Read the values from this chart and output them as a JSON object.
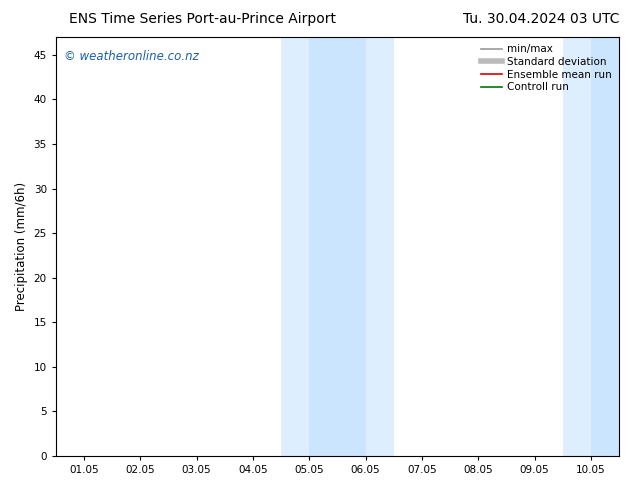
{
  "title_left": "ENS Time Series Port-au-Prince Airport",
  "title_right": "Tu. 30.04.2024 03 UTC",
  "xlabel": "",
  "ylabel": "Precipitation (mm/6h)",
  "ylim": [
    0,
    47
  ],
  "yticks": [
    0,
    5,
    10,
    15,
    20,
    25,
    30,
    35,
    40,
    45
  ],
  "xtick_labels": [
    "01.05",
    "02.05",
    "03.05",
    "04.05",
    "05.05",
    "06.05",
    "07.05",
    "08.05",
    "09.05",
    "10.05"
  ],
  "xtick_positions": [
    0,
    1,
    2,
    3,
    4,
    5,
    6,
    7,
    8,
    9
  ],
  "shaded_regions": [
    {
      "xmin": 3.3,
      "xmax": 4.0,
      "color": "#ddeeff"
    },
    {
      "xmin": 4.0,
      "xmax": 5.0,
      "color": "#cce5ff"
    },
    {
      "xmin": 5.0,
      "xmax": 5.7,
      "color": "#ddeeff"
    },
    {
      "xmin": 8.3,
      "xmax": 9.0,
      "color": "#ddeeff"
    },
    {
      "xmin": 9.0,
      "xmax": 9.7,
      "color": "#cce5ff"
    }
  ],
  "background_color": "#ffffff",
  "watermark_text": "© weatheronline.co.nz",
  "watermark_color": "#1a5faa",
  "legend_entries": [
    {
      "label": "min/max",
      "color": "#999999",
      "lw": 1.2,
      "style": "solid"
    },
    {
      "label": "Standard deviation",
      "color": "#bbbbbb",
      "lw": 4,
      "style": "solid"
    },
    {
      "label": "Ensemble mean run",
      "color": "#dd0000",
      "lw": 1.2,
      "style": "solid"
    },
    {
      "label": "Controll run",
      "color": "#007700",
      "lw": 1.2,
      "style": "solid"
    }
  ],
  "title_fontsize": 10,
  "axis_fontsize": 8.5,
  "tick_fontsize": 7.5,
  "watermark_fontsize": 8.5,
  "legend_fontsize": 7.5
}
